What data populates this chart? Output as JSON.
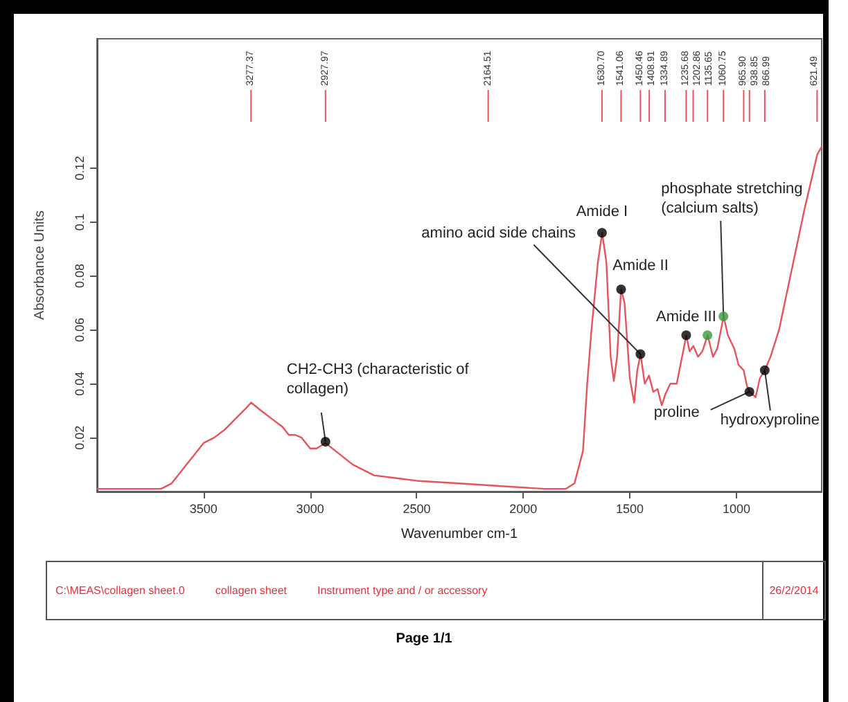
{
  "chart_data": {
    "type": "line",
    "xlabel": "Wavenumber cm-1",
    "ylabel": "Absorbance Units",
    "xlim": [
      4000,
      600
    ],
    "xticks": [
      3500,
      3000,
      2500,
      2000,
      1500,
      1000
    ],
    "ylim": [
      0,
      0.168
    ],
    "yticks": [
      0.02,
      0.04,
      0.06,
      0.08,
      0.1,
      0.12
    ],
    "grid": false,
    "series": [
      {
        "color": "#e8535a",
        "x": [
          4000,
          3700,
          3650,
          3600,
          3550,
          3500,
          3450,
          3400,
          3350,
          3300,
          3277,
          3230,
          3180,
          3130,
          3100,
          3070,
          3040,
          3000,
          2970,
          2928,
          2880,
          2800,
          2700,
          2600,
          2500,
          2300,
          2100,
          1900,
          1800,
          1760,
          1720,
          1700,
          1680,
          1650,
          1630,
          1610,
          1590,
          1575,
          1560,
          1541,
          1525,
          1500,
          1480,
          1465,
          1450,
          1430,
          1410,
          1390,
          1370,
          1350,
          1334,
          1310,
          1280,
          1260,
          1235,
          1220,
          1202,
          1180,
          1160,
          1135,
          1110,
          1090,
          1060,
          1040,
          1010,
          990,
          966,
          950,
          938,
          910,
          890,
          867,
          840,
          800,
          760,
          720,
          680,
          650,
          621,
          600
        ],
        "values": [
          0.001,
          0.001,
          0.003,
          0.008,
          0.013,
          0.018,
          0.02,
          0.023,
          0.027,
          0.031,
          0.033,
          0.03,
          0.027,
          0.024,
          0.021,
          0.021,
          0.02,
          0.016,
          0.016,
          0.018,
          0.015,
          0.01,
          0.006,
          0.005,
          0.004,
          0.003,
          0.002,
          0.001,
          0.001,
          0.003,
          0.015,
          0.04,
          0.06,
          0.085,
          0.096,
          0.085,
          0.05,
          0.041,
          0.05,
          0.075,
          0.07,
          0.042,
          0.033,
          0.045,
          0.051,
          0.04,
          0.043,
          0.037,
          0.038,
          0.032,
          0.036,
          0.04,
          0.04,
          0.048,
          0.058,
          0.052,
          0.054,
          0.05,
          0.052,
          0.058,
          0.05,
          0.053,
          0.065,
          0.058,
          0.053,
          0.047,
          0.045,
          0.039,
          0.037,
          0.035,
          0.042,
          0.045,
          0.05,
          0.06,
          0.075,
          0.09,
          0.105,
          0.115,
          0.125,
          0.128
        ]
      },
      {
        "type": "scatter",
        "marker": "circle",
        "x": [
          2927.97,
          1450.46,
          1630.7,
          1541.06,
          1235.68,
          1135.65,
          1060.75,
          938.85,
          866.99
        ],
        "values": [
          0.0185,
          0.051,
          0.096,
          0.075,
          0.058,
          0.058,
          0.065,
          0.037,
          0.045
        ],
        "colors": [
          "#000000",
          "#000000",
          "#000000",
          "#000000",
          "#000000",
          "#3a9a3a",
          "#3a9a3a",
          "#000000",
          "#000000"
        ]
      }
    ],
    "ref_lines": [
      {
        "axis": "x",
        "value": 3277.37,
        "label": "3277.37",
        "color": "#e8535a"
      },
      {
        "axis": "x",
        "value": 2927.97,
        "label": "2927.97",
        "color": "#e8535a"
      },
      {
        "axis": "x",
        "value": 2164.51,
        "label": "2164.51",
        "color": "#e8535a"
      },
      {
        "axis": "x",
        "value": 1630.7,
        "label": "1630.70",
        "color": "#e8535a"
      },
      {
        "axis": "x",
        "value": 1541.06,
        "label": "1541.06",
        "color": "#e8535a"
      },
      {
        "axis": "x",
        "value": 1450.46,
        "label": "1450.46",
        "color": "#e8535a"
      },
      {
        "axis": "x",
        "value": 1408.91,
        "label": "1408.91",
        "color": "#e8535a"
      },
      {
        "axis": "x",
        "value": 1334.89,
        "label": "1334.89",
        "color": "#e8535a"
      },
      {
        "axis": "x",
        "value": 1235.68,
        "label": "1235.68",
        "color": "#e8535a"
      },
      {
        "axis": "x",
        "value": 1202.86,
        "label": "1202.86",
        "color": "#e8535a"
      },
      {
        "axis": "x",
        "value": 1135.65,
        "label": "1135.65",
        "color": "#e8535a"
      },
      {
        "axis": "x",
        "value": 1060.75,
        "label": "1060.75",
        "color": "#e8535a"
      },
      {
        "axis": "x",
        "value": 965.9,
        "label": "965.90",
        "color": "#e8535a"
      },
      {
        "axis": "x",
        "value": 938.85,
        "label": "938.85",
        "color": "#e8535a"
      },
      {
        "axis": "x",
        "value": 866.99,
        "label": "866.99",
        "color": "#e8535a"
      },
      {
        "axis": "x",
        "value": 621.49,
        "label": "621.49",
        "color": "#e8535a"
      }
    ],
    "annotations": [
      {
        "text": "CH2-CH3 (characteristic of collagen)",
        "x": 2927.97,
        "y": 0.0185
      },
      {
        "text": "amino acid side chains",
        "x": 1450.46,
        "y": 0.051
      },
      {
        "text": "Amide I",
        "x": 1630.7,
        "y": 0.096
      },
      {
        "text": "Amide II",
        "x": 1541.06,
        "y": 0.075
      },
      {
        "text": "Amide III",
        "x": 1235.68,
        "y": 0.058
      },
      {
        "text": "phosphate stretching (calcium salts)",
        "x": 1060.75,
        "y": 0.065
      },
      {
        "text": "proline",
        "x": 938.85,
        "y": 0.037
      },
      {
        "text": "hydroxyproline",
        "x": 866.99,
        "y": 0.045
      },
      "C:\\MEAS\\collagen sheet.0",
      "collagen sheet",
      "Instrument type and / or accessory",
      "26/2/2014",
      "Page 1/1"
    ]
  }
}
